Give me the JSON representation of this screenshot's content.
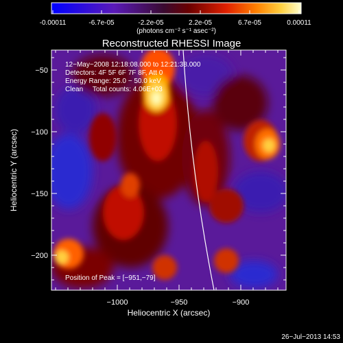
{
  "colorbar": {
    "tick_labels": [
      "-0.00011",
      "-6.7e-05",
      "-2.2e-05",
      "2.2e-05",
      "6.7e-05",
      "0.00011"
    ],
    "unit_label": "(photons cm⁻² s⁻¹ asec⁻²)"
  },
  "plot": {
    "title": "Reconstructed RHESSI Image",
    "xlabel": "Heliocentric X (arcsec)",
    "ylabel": "Heliocentric Y (arcsec)",
    "x_ticks": [
      "−1000",
      "−950",
      "−900"
    ],
    "y_ticks": [
      "−50",
      "−100",
      "−150",
      "−200"
    ],
    "info_lines": [
      "12−May−2008 12:18:08.000 to 12:21:38.000",
      "Detectors: 4F 5F 6F 7F 8F, Att 0",
      "Energy Range: 25.0 − 50.0 keV",
      "Clean     Total counts: 4.06E+03"
    ],
    "peak_label": "Position of Peak = [−951,−79]"
  },
  "footer": {
    "date": "26−Jul−2013 14:53"
  }
}
